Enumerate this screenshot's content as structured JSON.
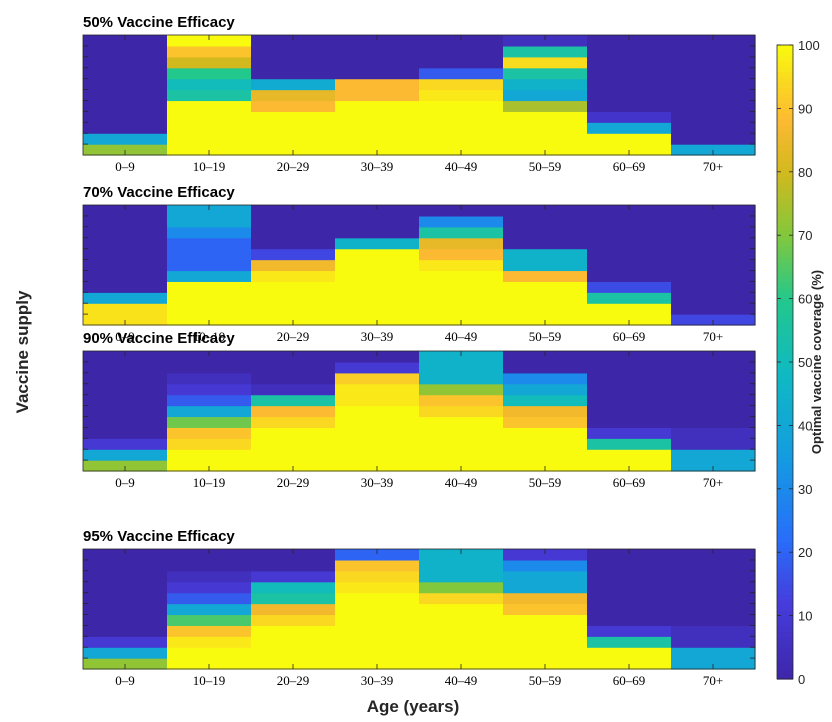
{
  "chart_data": {
    "type": "heatmap",
    "xlabel": "Age (years)",
    "ylabel": "Vaccine supply",
    "colorbar": {
      "label": "Optimal vaccine coverage (%)",
      "range": [
        0,
        100
      ],
      "ticks": [
        "0",
        "10",
        "20",
        "30",
        "40",
        "50",
        "60",
        "70",
        "80",
        "90",
        "100"
      ]
    },
    "categories": [
      "0–9",
      "10–19",
      "20–29",
      "30–39",
      "40–49",
      "50–59",
      "60–69",
      "70+"
    ],
    "panels": [
      {
        "title": "50% Vaccine Efficacy",
        "columns": [
          [
            72,
            40,
            0,
            0,
            0,
            0,
            0,
            0,
            0,
            0,
            0
          ],
          [
            100,
            100,
            100,
            100,
            100,
            55,
            50,
            60,
            80,
            90,
            100
          ],
          [
            100,
            100,
            100,
            100,
            88,
            84,
            42,
            0,
            0,
            0,
            0
          ],
          [
            100,
            100,
            100,
            100,
            100,
            88,
            88,
            0,
            0,
            0,
            0
          ],
          [
            100,
            100,
            100,
            100,
            100,
            97,
            94,
            18,
            0,
            0,
            0
          ],
          [
            100,
            100,
            100,
            100,
            75,
            40,
            45,
            55,
            95,
            55,
            5
          ],
          [
            100,
            100,
            40,
            8,
            0,
            0,
            0,
            0,
            0,
            0,
            0
          ],
          [
            40,
            0,
            0,
            0,
            0,
            0,
            0,
            0,
            0,
            0,
            0
          ]
        ]
      },
      {
        "title": "70% Vaccine Efficacy",
        "columns": [
          [
            96,
            96,
            40,
            0,
            0,
            0,
            0,
            0,
            0,
            0,
            0
          ],
          [
            100,
            100,
            100,
            100,
            40,
            20,
            20,
            20,
            30,
            40,
            40
          ],
          [
            100,
            100,
            100,
            100,
            97,
            86,
            14,
            0,
            0,
            0,
            0
          ],
          [
            100,
            100,
            100,
            100,
            100,
            100,
            100,
            45,
            0,
            0,
            0
          ],
          [
            100,
            100,
            100,
            100,
            100,
            97,
            88,
            84,
            55,
            30,
            0
          ],
          [
            100,
            100,
            100,
            100,
            88,
            45,
            45,
            0,
            0,
            0,
            0
          ],
          [
            100,
            100,
            55,
            15,
            0,
            0,
            0,
            0,
            0,
            0,
            0
          ],
          [
            14,
            0,
            0,
            0,
            0,
            0,
            0,
            0,
            0,
            0,
            0
          ]
        ]
      },
      {
        "title": "90% Vaccine Efficacy",
        "columns": [
          [
            72,
            40,
            10,
            0,
            0,
            0,
            0,
            0,
            0,
            0,
            0
          ],
          [
            100,
            100,
            94,
            90,
            68,
            40,
            18,
            10,
            5,
            0,
            0
          ],
          [
            100,
            100,
            100,
            100,
            94,
            88,
            55,
            5,
            0,
            0,
            0
          ],
          [
            100,
            100,
            100,
            100,
            100,
            100,
            97,
            97,
            92,
            10,
            0
          ],
          [
            100,
            100,
            100,
            100,
            100,
            94,
            90,
            72,
            45,
            45,
            45
          ],
          [
            100,
            100,
            100,
            100,
            90,
            86,
            50,
            40,
            30,
            0,
            0
          ],
          [
            100,
            100,
            55,
            10,
            0,
            0,
            0,
            0,
            0,
            0,
            0
          ],
          [
            40,
            40,
            5,
            5,
            0,
            0,
            0,
            0,
            0,
            0,
            0
          ]
        ]
      },
      {
        "title": "95% Vaccine Efficacy",
        "columns": [
          [
            72,
            40,
            10,
            0,
            0,
            0,
            0,
            0,
            0,
            0,
            0
          ],
          [
            100,
            100,
            97,
            90,
            64,
            40,
            18,
            10,
            5,
            0,
            0
          ],
          [
            100,
            100,
            100,
            100,
            94,
            86,
            55,
            50,
            10,
            0,
            0
          ],
          [
            100,
            100,
            100,
            100,
            100,
            100,
            100,
            97,
            94,
            90,
            20
          ],
          [
            100,
            100,
            100,
            100,
            100,
            100,
            94,
            70,
            45,
            45,
            45
          ],
          [
            100,
            100,
            100,
            100,
            100,
            90,
            86,
            40,
            40,
            30,
            10
          ],
          [
            100,
            100,
            55,
            10,
            0,
            0,
            0,
            0,
            0,
            0,
            0
          ],
          [
            40,
            40,
            5,
            5,
            0,
            0,
            0,
            0,
            0,
            0,
            0
          ]
        ]
      }
    ]
  }
}
